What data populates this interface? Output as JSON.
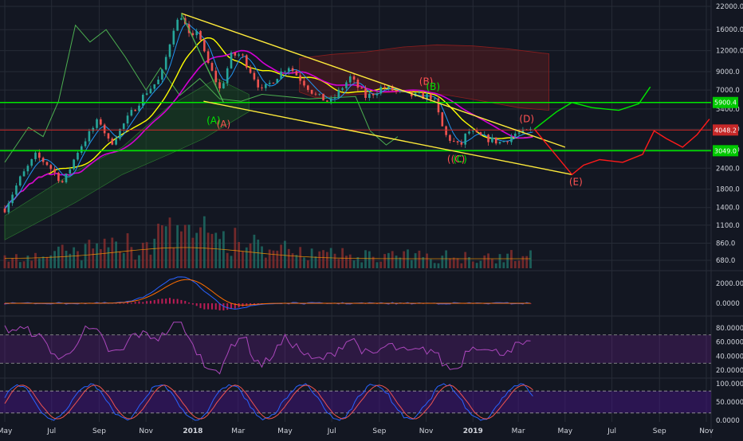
{
  "chart_data": {
    "type": "line",
    "colors": {
      "background": "#131722",
      "grid": "#262b36",
      "axis_text": "#d1d4dc",
      "candle_up": "#26a69a",
      "candle_down": "#ef5350",
      "support_green": "#00e600",
      "trend_yellow": "#ffeb3b",
      "projection_red": "#ff1a1a",
      "price_line_red": "#c62828",
      "ma_magenta": "#d400d4",
      "ma_yellow": "#ffff00",
      "ma_blue": "#2196f3",
      "ichimoku_green": "#4caf50",
      "ichimoku_red": "#7f1d1d",
      "rsi_band": "#7b1fa2",
      "stoch_band": "#4a148c",
      "macd_blue": "#2962ff",
      "macd_orange": "#ff6d00",
      "hist_magenta": "#e91e63"
    },
    "x_tick_labels": [
      "May",
      "Jul",
      "Sep",
      "Nov",
      "2018",
      "Mar",
      "May",
      "Jul",
      "Sep",
      "Nov",
      "2019",
      "Mar",
      "May",
      "Jul",
      "Sep",
      "Nov"
    ],
    "y_scale": "log",
    "y_ticks": [
      "22000.0",
      "16000.0",
      "12000.0",
      "9000.0",
      "7000.0",
      "5400.0",
      "4100.0",
      "3100.0",
      "2400.0",
      "1800.0",
      "1400.0",
      "1100.0",
      "860.0",
      "680.0"
    ],
    "price_labels": [
      {
        "name": "resistance",
        "text": "5900.4",
        "value": 5900.4,
        "color": "#00c800"
      },
      {
        "name": "current",
        "text": "4048.2",
        "value": 4048.2,
        "color": "#c62828"
      },
      {
        "name": "support",
        "text": "3049.0",
        "value": 3049.0,
        "color": "#00c800"
      }
    ],
    "wave_labels": [
      {
        "text": "(A)",
        "color": "#00e600",
        "date": "2018-01-28",
        "price": 4400
      },
      {
        "text": "(A)",
        "color": "#ff5252",
        "date": "2018-02-10",
        "price": 4200
      },
      {
        "text": "(B)",
        "color": "#ff5252",
        "date": "2018-11-01",
        "price": 7500
      },
      {
        "text": "(B)",
        "color": "#00e600",
        "date": "2018-11-10",
        "price": 7000
      },
      {
        "text": "((C)",
        "color": "#ff5252",
        "date": "2018-12-10",
        "price": 2600
      },
      {
        "text": "(C)",
        "color": "#00e600",
        "date": "2018-12-15",
        "price": 2600
      },
      {
        "text": "(D)",
        "color": "#ff5252",
        "date": "2019-03-12",
        "price": 4500
      },
      {
        "text": "(E)",
        "color": "#ff5252",
        "date": "2019-05-15",
        "price": 1900
      }
    ],
    "price_series": [
      {
        "date": "2017-05-01",
        "price": 1380
      },
      {
        "date": "2017-05-20",
        "price": 2050
      },
      {
        "date": "2017-06-10",
        "price": 2850
      },
      {
        "date": "2017-06-25",
        "price": 2550
      },
      {
        "date": "2017-07-16",
        "price": 1950
      },
      {
        "date": "2017-08-05",
        "price": 3100
      },
      {
        "date": "2017-09-01",
        "price": 4700
      },
      {
        "date": "2017-09-15",
        "price": 3300
      },
      {
        "date": "2017-10-10",
        "price": 4900
      },
      {
        "date": "2017-11-01",
        "price": 6800
      },
      {
        "date": "2017-11-20",
        "price": 8200
      },
      {
        "date": "2017-12-07",
        "price": 16500
      },
      {
        "date": "2017-12-17",
        "price": 19500
      },
      {
        "date": "2017-12-30",
        "price": 13500
      },
      {
        "date": "2018-01-07",
        "price": 16500
      },
      {
        "date": "2018-01-17",
        "price": 11000
      },
      {
        "date": "2018-02-06",
        "price": 6900
      },
      {
        "date": "2018-02-20",
        "price": 11200
      },
      {
        "date": "2018-03-05",
        "price": 11400
      },
      {
        "date": "2018-04-01",
        "price": 6900
      },
      {
        "date": "2018-05-05",
        "price": 9800
      },
      {
        "date": "2018-06-10",
        "price": 6500
      },
      {
        "date": "2018-06-29",
        "price": 5900
      },
      {
        "date": "2018-07-25",
        "price": 8300
      },
      {
        "date": "2018-08-15",
        "price": 6300
      },
      {
        "date": "2018-09-05",
        "price": 7300
      },
      {
        "date": "2018-10-10",
        "price": 6500
      },
      {
        "date": "2018-11-10",
        "price": 6400
      },
      {
        "date": "2018-11-25",
        "price": 3800
      },
      {
        "date": "2018-12-15",
        "price": 3200
      },
      {
        "date": "2018-12-25",
        "price": 4000
      },
      {
        "date": "2019-01-10",
        "price": 3700
      },
      {
        "date": "2019-02-07",
        "price": 3400
      },
      {
        "date": "2019-02-25",
        "price": 3850
      },
      {
        "date": "2019-03-10",
        "price": 3900
      },
      {
        "date": "2019-03-20",
        "price": 4048
      }
    ],
    "support_line": 3049.0,
    "resistance_line": 5900.4,
    "current_price": 4048.2,
    "trendlines": [
      {
        "name": "upper-descending",
        "from": {
          "date": "2017-12-17",
          "price": 20000
        },
        "to": {
          "date": "2019-05-01",
          "price": 3200
        }
      },
      {
        "name": "lower-descending",
        "from": {
          "date": "2018-01-15",
          "price": 6000
        },
        "to": {
          "date": "2019-05-10",
          "price": 2200
        }
      },
      {
        "name": "wave-a-leg",
        "from": {
          "date": "2017-12-17",
          "price": 20000
        },
        "to": {
          "date": "2018-02-10",
          "price": 5900
        }
      }
    ],
    "projection_path": [
      {
        "date": "2019-03-22",
        "price": 4100
      },
      {
        "date": "2019-05-10",
        "price": 2200
      },
      {
        "date": "2019-05-25",
        "price": 2500
      },
      {
        "date": "2019-06-15",
        "price": 2700
      },
      {
        "date": "2019-07-15",
        "price": 2600
      },
      {
        "date": "2019-08-10",
        "price": 2900
      },
      {
        "date": "2019-08-25",
        "price": 4000
      },
      {
        "date": "2019-09-10",
        "price": 3600
      },
      {
        "date": "2019-10-01",
        "price": 3200
      },
      {
        "date": "2019-10-20",
        "price": 3800
      },
      {
        "date": "2019-11-05",
        "price": 4700
      }
    ],
    "green_projection": [
      {
        "date": "2019-03-22",
        "price": 4100
      },
      {
        "date": "2019-04-20",
        "price": 5200
      },
      {
        "date": "2019-05-10",
        "price": 5900
      },
      {
        "date": "2019-06-05",
        "price": 5500
      },
      {
        "date": "2019-07-10",
        "price": 5300
      },
      {
        "date": "2019-08-05",
        "price": 5800
      },
      {
        "date": "2019-08-20",
        "price": 7300
      }
    ],
    "macd": {
      "y_ticks": [
        "2000.0000",
        "0.0000"
      ]
    },
    "rsi": {
      "y_ticks": [
        "80.0000",
        "60.0000",
        "40.0000",
        "20.0000"
      ],
      "band": [
        30,
        70
      ]
    },
    "stoch": {
      "y_ticks": [
        "100.0000",
        "50.0000",
        "0.0000"
      ],
      "band": [
        20,
        80
      ]
    }
  }
}
